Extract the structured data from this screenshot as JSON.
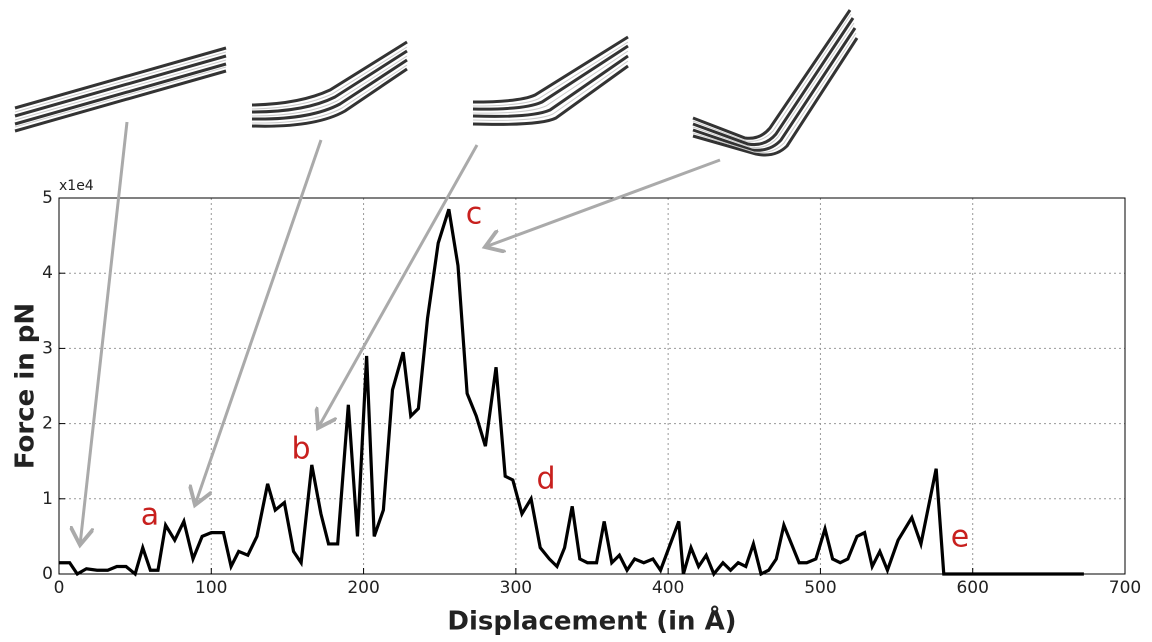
{
  "chart_data": {
    "type": "line",
    "y_multiplier": "x1e4",
    "x_label": "Displacement (in Å)",
    "y_label": "Force in pN",
    "annotations": [
      "a",
      "b",
      "c",
      "d",
      "e"
    ],
    "xlim": [
      0,
      700
    ],
    "xticks": [
      0,
      100,
      200,
      300,
      400,
      500,
      600,
      700
    ],
    "ylim": [
      0,
      5
    ],
    "yticks": [
      0,
      1,
      2,
      3,
      4,
      5
    ],
    "grid": true,
    "series": [
      {
        "color": "#000000",
        "x": [
          0,
          7,
          12,
          18,
          25,
          32,
          38,
          44,
          50,
          55,
          60,
          65,
          70,
          76,
          82,
          88,
          94,
          100,
          108,
          113,
          118,
          124,
          130,
          137,
          142,
          148,
          154,
          159,
          166,
          172,
          177,
          183,
          190,
          196,
          202,
          207,
          213,
          219,
          226,
          231,
          236,
          242,
          249,
          256,
          262,
          268,
          274,
          280,
          287,
          293,
          298,
          304,
          310,
          316,
          322,
          327,
          332,
          337,
          342,
          347,
          353,
          358,
          363,
          368,
          373,
          378,
          384,
          390,
          395,
          407,
          410,
          415,
          420,
          425,
          430,
          436,
          441,
          446,
          451,
          456,
          461,
          466,
          471,
          476,
          481,
          486,
          491,
          497,
          503,
          508,
          513,
          518,
          524,
          529,
          534,
          539,
          544,
          551,
          560,
          566,
          576,
          581,
          600,
          673
        ],
        "values": [
          0.15,
          0.15,
          0,
          0.07,
          0.05,
          0.05,
          0.1,
          0.1,
          0,
          0.35,
          0.05,
          0.05,
          0.65,
          0.45,
          0.7,
          0.2,
          0.5,
          0.55,
          0.55,
          0.1,
          0.3,
          0.25,
          0.5,
          1.2,
          0.85,
          0.95,
          0.3,
          0.15,
          1.45,
          0.8,
          0.4,
          0.4,
          2.25,
          0.5,
          2.9,
          0.5,
          0.85,
          2.45,
          2.95,
          2.1,
          2.2,
          3.4,
          4.4,
          4.85,
          4.1,
          2.4,
          2.1,
          1.7,
          2.75,
          1.3,
          1.25,
          0.8,
          1.0,
          0.35,
          0.2,
          0.1,
          0.35,
          0.9,
          0.2,
          0.15,
          0.15,
          0.7,
          0.15,
          0.25,
          0.05,
          0.2,
          0.15,
          0.2,
          0.05,
          0.7,
          0,
          0.35,
          0.1,
          0.25,
          0,
          0.15,
          0.05,
          0.15,
          0.1,
          0.4,
          0,
          0.05,
          0.2,
          0.65,
          0.4,
          0.15,
          0.15,
          0.2,
          0.6,
          0.2,
          0.15,
          0.2,
          0.5,
          0.55,
          0.1,
          0.3,
          0.05,
          0.45,
          0.75,
          0.4,
          1.4,
          0,
          0,
          0
        ]
      }
    ]
  }
}
